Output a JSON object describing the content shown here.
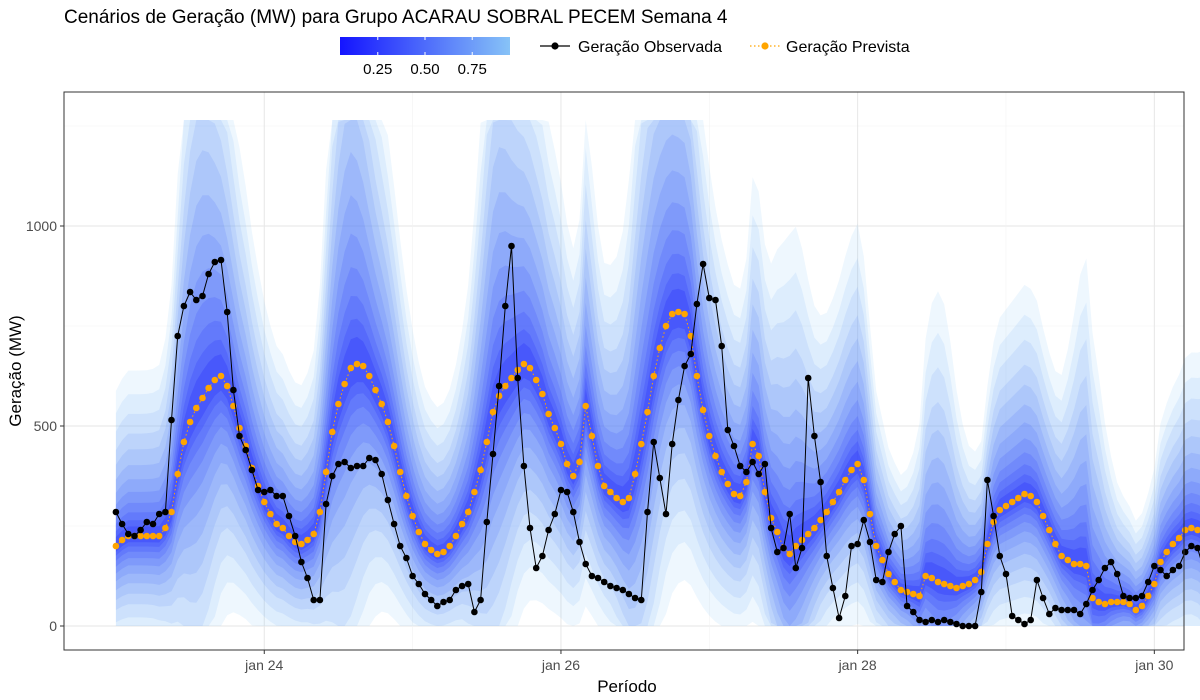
{
  "chart_data": {
    "type": "line",
    "title": "Cenários de Geração (MW) para Grupo ACARAU SOBRAL PECEM Semana 4",
    "xlabel": "Período",
    "ylabel": "Geração (MW)",
    "x_start_label": "jan 23 00:00",
    "x_step_hours": 1,
    "x_range_days": [
      22.65,
      30.2
    ],
    "ylim": [
      -60,
      1335
    ],
    "x_ticks": [
      {
        "day": 24,
        "label": "jan 24"
      },
      {
        "day": 26,
        "label": "jan 26"
      },
      {
        "day": 28,
        "label": "jan 28"
      },
      {
        "day": 30,
        "label": "jan 30"
      }
    ],
    "y_ticks": [
      0,
      500,
      1000
    ],
    "grid": true,
    "legend": {
      "position": "top",
      "colorbar_ticks": [
        "0.25",
        "0.50",
        "0.75"
      ],
      "colorbar_colors": [
        "#1414ff",
        "#87c3f7"
      ],
      "entries": [
        {
          "name": "Geração Observada",
          "color": "#000000",
          "style": "solid"
        },
        {
          "name": "Geração Prevista",
          "color": "#ffa500",
          "style": "dotted"
        }
      ]
    },
    "series": [
      {
        "name": "Geração Observada",
        "color": "#000000",
        "values": [
          285,
          255,
          230,
          225,
          240,
          260,
          255,
          280,
          285,
          515,
          725,
          800,
          835,
          815,
          825,
          880,
          910,
          915,
          785,
          590,
          475,
          440,
          390,
          340,
          335,
          340,
          325,
          325,
          275,
          225,
          160,
          120,
          65,
          65,
          305,
          375,
          405,
          410,
          395,
          400,
          400,
          420,
          415,
          380,
          315,
          255,
          200,
          170,
          125,
          105,
          80,
          65,
          50,
          60,
          65,
          90,
          100,
          105,
          35,
          65,
          260,
          430,
          600,
          800,
          950,
          620,
          400,
          245,
          145,
          175,
          240,
          280,
          340,
          335,
          285,
          210,
          155,
          125,
          120,
          110,
          100,
          95,
          90,
          80,
          70,
          65,
          285,
          460,
          370,
          280,
          455,
          565,
          650,
          680,
          805,
          905,
          820,
          815,
          700,
          490,
          450,
          400,
          385,
          410,
          380,
          405,
          245,
          185,
          195,
          280,
          145,
          195,
          620,
          475,
          360,
          175,
          95,
          20,
          75,
          200,
          205,
          265,
          210,
          115,
          110,
          185,
          230,
          250,
          50,
          35,
          15,
          10,
          15,
          10,
          15,
          10,
          5,
          0,
          0,
          0,
          85,
          365,
          275,
          175,
          130,
          25,
          15,
          5,
          15,
          115,
          70,
          30,
          45,
          40,
          40,
          40,
          30,
          55,
          90,
          115,
          145,
          160,
          130,
          75,
          70,
          70,
          75,
          110,
          150,
          140,
          125,
          140,
          150,
          185,
          200,
          195,
          140,
          90
        ]
      },
      {
        "name": "Geração Prevista",
        "color": "#ffa500",
        "values": [
          200,
          215,
          225,
          225,
          225,
          225,
          225,
          225,
          245,
          285,
          380,
          460,
          510,
          545,
          570,
          595,
          615,
          625,
          600,
          550,
          495,
          450,
          395,
          350,
          310,
          280,
          255,
          245,
          225,
          210,
          205,
          215,
          230,
          285,
          385,
          485,
          555,
          605,
          645,
          655,
          650,
          625,
          590,
          555,
          510,
          450,
          385,
          325,
          275,
          235,
          205,
          190,
          180,
          185,
          200,
          225,
          255,
          285,
          335,
          390,
          460,
          535,
          575,
          600,
          620,
          640,
          655,
          645,
          615,
          580,
          530,
          495,
          455,
          405,
          375,
          410,
          550,
          475,
          400,
          350,
          335,
          320,
          310,
          320,
          380,
          455,
          535,
          625,
          695,
          750,
          780,
          785,
          780,
          725,
          625,
          540,
          475,
          425,
          385,
          355,
          330,
          325,
          360,
          455,
          425,
          335,
          270,
          235,
          195,
          180,
          200,
          215,
          230,
          245,
          265,
          285,
          310,
          335,
          365,
          390,
          405,
          365,
          280,
          200,
          165,
          130,
          110,
          90,
          85,
          80,
          75,
          125,
          120,
          110,
          105,
          100,
          95,
          100,
          105,
          115,
          135,
          205,
          260,
          290,
          300,
          310,
          320,
          330,
          325,
          310,
          275,
          240,
          205,
          175,
          165,
          155,
          155,
          150,
          70,
          60,
          55,
          60,
          60,
          60,
          55,
          40,
          50,
          75,
          105,
          160,
          185,
          205,
          220,
          240,
          245,
          240,
          230,
          255,
          270,
          265,
          260,
          250,
          240
        ]
      }
    ]
  }
}
